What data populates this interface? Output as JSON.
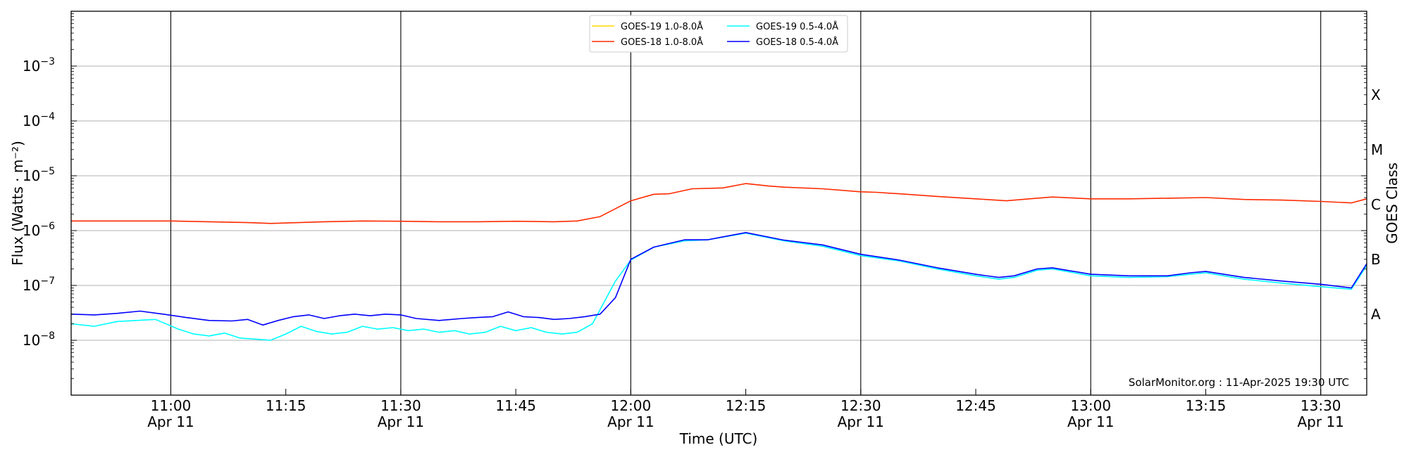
{
  "chart_data": {
    "type": "line",
    "xlabel": "Time (UTC)",
    "ylabel": "Flux (Watts · m⁻²)",
    "ylabel_right": "GOES Class",
    "credit": "SolarMonitor.org : 11-Apr-2025 19:30 UTC",
    "y_scale": "log",
    "ylim": [
      1e-09,
      0.01
    ],
    "xlim": [
      "10:47",
      "13:36"
    ],
    "grid": "horizontal at decades, vertical at half-hours",
    "legend_position": "top-center",
    "y_ticks": [
      {
        "value": 1e-08,
        "base": "10",
        "exp": "−8"
      },
      {
        "value": 1e-07,
        "base": "10",
        "exp": "−7"
      },
      {
        "value": 1e-06,
        "base": "10",
        "exp": "−6"
      },
      {
        "value": 1e-05,
        "base": "10",
        "exp": "−5"
      },
      {
        "value": 0.0001,
        "base": "10",
        "exp": "−4"
      },
      {
        "value": 0.001,
        "base": "10",
        "exp": "−3"
      }
    ],
    "x_ticks": [
      {
        "time": "11:00",
        "label": "11:00",
        "date": "Apr 11"
      },
      {
        "time": "11:15",
        "label": "11:15",
        "date": ""
      },
      {
        "time": "11:30",
        "label": "11:30",
        "date": "Apr 11"
      },
      {
        "time": "11:45",
        "label": "11:45",
        "date": ""
      },
      {
        "time": "12:00",
        "label": "12:00",
        "date": "Apr 11"
      },
      {
        "time": "12:15",
        "label": "12:15",
        "date": ""
      },
      {
        "time": "12:30",
        "label": "12:30",
        "date": "Apr 11"
      },
      {
        "time": "12:45",
        "label": "12:45",
        "date": ""
      },
      {
        "time": "13:00",
        "label": "13:00",
        "date": "Apr 11"
      },
      {
        "time": "13:15",
        "label": "13:15",
        "date": ""
      },
      {
        "time": "13:30",
        "label": "13:30",
        "date": "Apr 11"
      }
    ],
    "goes_classes": [
      {
        "label": "A",
        "value": 3e-08
      },
      {
        "label": "B",
        "value": 3e-07
      },
      {
        "label": "C",
        "value": 3e-06
      },
      {
        "label": "M",
        "value": 3e-05
      },
      {
        "label": "X",
        "value": 0.0003
      }
    ],
    "series": [
      {
        "name": "GOES-19 1.0-8.0Å",
        "color": "#ffd700",
        "x": [],
        "y": []
      },
      {
        "name": "GOES-18 1.0-8.0Å",
        "color": "#ff2a00",
        "x": [
          "10:47",
          "10:50",
          "10:55",
          "11:00",
          "11:05",
          "11:10",
          "11:13",
          "11:20",
          "11:25",
          "11:30",
          "11:35",
          "11:40",
          "11:45",
          "11:50",
          "11:53",
          "11:56",
          "12:00",
          "12:03",
          "12:05",
          "12:08",
          "12:12",
          "12:15",
          "12:18",
          "12:20",
          "12:25",
          "12:30",
          "12:32",
          "12:35",
          "12:40",
          "12:45",
          "12:49",
          "12:52",
          "12:55",
          "13:00",
          "13:05",
          "13:10",
          "13:15",
          "13:20",
          "13:25",
          "13:30",
          "13:34",
          "13:36"
        ],
        "y": [
          1.5e-06,
          1.5e-06,
          1.5e-06,
          1.5e-06,
          1.45e-06,
          1.4e-06,
          1.35e-06,
          1.45e-06,
          1.5e-06,
          1.48e-06,
          1.45e-06,
          1.45e-06,
          1.48e-06,
          1.45e-06,
          1.5e-06,
          1.8e-06,
          3.5e-06,
          4.6e-06,
          4.7e-06,
          5.8e-06,
          6e-06,
          7.2e-06,
          6.5e-06,
          6.2e-06,
          5.8e-06,
          5.1e-06,
          5e-06,
          4.7e-06,
          4.2e-06,
          3.8e-06,
          3.5e-06,
          3.8e-06,
          4.1e-06,
          3.8e-06,
          3.8e-06,
          3.9e-06,
          4e-06,
          3.7e-06,
          3.6e-06,
          3.4e-06,
          3.2e-06,
          3.8e-06
        ]
      },
      {
        "name": "GOES-19 0.5-4.0Å",
        "color": "#00ffff",
        "x": [
          "10:47",
          "10:50",
          "10:53",
          "10:58",
          "11:01",
          "11:03",
          "11:05",
          "11:07",
          "11:09",
          "11:11",
          "11:13",
          "11:15",
          "11:17",
          "11:19",
          "11:21",
          "11:23",
          "11:25",
          "11:27",
          "11:29",
          "11:31",
          "11:33",
          "11:35",
          "11:37",
          "11:39",
          "11:41",
          "11:43",
          "11:45",
          "11:47",
          "11:49",
          "11:51",
          "11:53",
          "11:55",
          "11:58",
          "12:00",
          "12:03",
          "12:07",
          "12:10",
          "12:15",
          "12:20",
          "12:25",
          "12:30",
          "12:35",
          "12:40",
          "12:45",
          "12:48",
          "12:50",
          "12:53",
          "12:55",
          "13:00",
          "13:05",
          "13:10",
          "13:13",
          "13:15",
          "13:20",
          "13:25",
          "13:30",
          "13:34",
          "13:36"
        ],
        "y": [
          2e-08,
          1.8e-08,
          2.2e-08,
          2.4e-08,
          1.6e-08,
          1.3e-08,
          1.2e-08,
          1.35e-08,
          1.1e-08,
          1.05e-08,
          1e-08,
          1.3e-08,
          1.8e-08,
          1.45e-08,
          1.3e-08,
          1.4e-08,
          1.8e-08,
          1.6e-08,
          1.7e-08,
          1.5e-08,
          1.6e-08,
          1.4e-08,
          1.5e-08,
          1.3e-08,
          1.4e-08,
          1.8e-08,
          1.5e-08,
          1.7e-08,
          1.4e-08,
          1.3e-08,
          1.4e-08,
          2e-08,
          1.2e-07,
          2.9e-07,
          5e-07,
          6.5e-07,
          6.8e-07,
          9e-07,
          6.5e-07,
          5.2e-07,
          3.5e-07,
          2.8e-07,
          2e-07,
          1.5e-07,
          1.3e-07,
          1.4e-07,
          1.9e-07,
          2e-07,
          1.5e-07,
          1.4e-07,
          1.45e-07,
          1.6e-07,
          1.7e-07,
          1.3e-07,
          1.1e-07,
          9.5e-08,
          8.5e-08,
          2.3e-07
        ]
      },
      {
        "name": "GOES-18 0.5-4.0Å",
        "color": "#0000ff",
        "x": [
          "10:47",
          "10:50",
          "10:53",
          "10:56",
          "10:59",
          "11:02",
          "11:05",
          "11:08",
          "11:10",
          "11:12",
          "11:14",
          "11:16",
          "11:18",
          "11:20",
          "11:22",
          "11:24",
          "11:26",
          "11:28",
          "11:30",
          "11:32",
          "11:35",
          "11:38",
          "11:40",
          "11:42",
          "11:44",
          "11:46",
          "11:48",
          "11:50",
          "11:52",
          "11:54",
          "11:56",
          "11:58",
          "12:00",
          "12:03",
          "12:07",
          "12:10",
          "12:15",
          "12:20",
          "12:25",
          "12:30",
          "12:35",
          "12:40",
          "12:45",
          "12:48",
          "12:50",
          "12:53",
          "12:55",
          "13:00",
          "13:05",
          "13:10",
          "13:13",
          "13:15",
          "13:20",
          "13:25",
          "13:30",
          "13:34",
          "13:36"
        ],
        "y": [
          3e-08,
          2.9e-08,
          3.1e-08,
          3.4e-08,
          3e-08,
          2.6e-08,
          2.3e-08,
          2.25e-08,
          2.4e-08,
          1.9e-08,
          2.3e-08,
          2.7e-08,
          2.9e-08,
          2.5e-08,
          2.8e-08,
          3e-08,
          2.8e-08,
          3e-08,
          2.9e-08,
          2.5e-08,
          2.3e-08,
          2.5e-08,
          2.6e-08,
          2.7e-08,
          3.3e-08,
          2.7e-08,
          2.6e-08,
          2.4e-08,
          2.5e-08,
          2.7e-08,
          3e-08,
          6e-08,
          3e-07,
          5e-07,
          6.8e-07,
          6.8e-07,
          9.2e-07,
          6.7e-07,
          5.5e-07,
          3.7e-07,
          2.9e-07,
          2.1e-07,
          1.6e-07,
          1.4e-07,
          1.5e-07,
          2e-07,
          2.1e-07,
          1.6e-07,
          1.5e-07,
          1.5e-07,
          1.7e-07,
          1.8e-07,
          1.4e-07,
          1.2e-07,
          1.05e-07,
          9e-08,
          2.5e-07
        ]
      }
    ]
  }
}
